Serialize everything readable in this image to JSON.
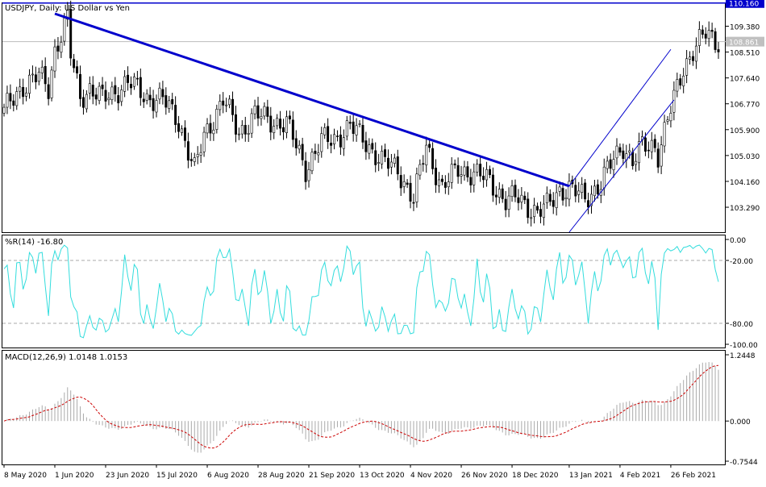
{
  "chart_data": [
    {
      "panel": "price",
      "type": "candlestick",
      "title": "USDJPY, Daily:  US Dollar vs Yen",
      "y_ticks": [
        "109.380",
        "108.510",
        "107.640",
        "106.770",
        "105.900",
        "105.030",
        "104.160",
        "103.290"
      ],
      "y_range": [
        102.45,
        110.18
      ],
      "current_price": "108.861",
      "level_line": {
        "label": "110.160",
        "color": "#0000cc"
      },
      "trendline": {
        "start": [
          "1 Jun 2020",
          109.8
        ],
        "end": [
          "13 Jan 2021",
          104.0
        ],
        "color": "#0000cc"
      },
      "channel": {
        "upper": {
          "start": [
            "13 Jan 2021",
            104.0
          ],
          "end": [
            "26 Feb 2021",
            108.6
          ]
        },
        "lower": {
          "start": [
            "13 Jan 2021",
            102.45
          ],
          "end": [
            "1 Mar 2021",
            106.9
          ]
        },
        "color": "#0000cc"
      },
      "anchors": [
        {
          "date": "8 May 2020",
          "v": 106.5
        },
        {
          "date": "18 May 2020",
          "v": 107.4
        },
        {
          "date": "25 May 2020",
          "v": 107.7
        },
        {
          "date": "28 May 2020",
          "v": 107.3
        },
        {
          "date": "1 Jun 2020",
          "v": 108.6
        },
        {
          "date": "5 Jun 2020",
          "v": 109.6
        },
        {
          "date": "8 Jun 2020",
          "v": 108.4
        },
        {
          "date": "11 Jun 2020",
          "v": 107.0
        },
        {
          "date": "16 Jun 2020",
          "v": 107.3
        },
        {
          "date": "22 Jun 2020",
          "v": 106.9
        },
        {
          "date": "26 Jun 2020",
          "v": 107.2
        },
        {
          "date": "2 Jul 2020",
          "v": 107.5
        },
        {
          "date": "10 Jul 2020",
          "v": 107.0
        },
        {
          "date": "17 Jul 2020",
          "v": 106.9
        },
        {
          "date": "24 Jul 2020",
          "v": 106.2
        },
        {
          "date": "31 Jul 2020",
          "v": 104.5
        },
        {
          "date": "5 Aug 2020",
          "v": 105.7
        },
        {
          "date": "13 Aug 2020",
          "v": 106.9
        },
        {
          "date": "20 Aug 2020",
          "v": 105.8
        },
        {
          "date": "27 Aug 2020",
          "v": 106.4
        },
        {
          "date": "3 Sep 2020",
          "v": 106.2
        },
        {
          "date": "10 Sep 2020",
          "v": 106.1
        },
        {
          "date": "18 Sep 2020",
          "v": 104.6
        },
        {
          "date": "25 Sep 2020",
          "v": 105.5
        },
        {
          "date": "1 Oct 2020",
          "v": 105.6
        },
        {
          "date": "8 Oct 2020",
          "v": 106.0
        },
        {
          "date": "15 Oct 2020",
          "v": 105.5
        },
        {
          "date": "22 Oct 2020",
          "v": 104.8
        },
        {
          "date": "29 Oct 2020",
          "v": 104.6
        },
        {
          "date": "5 Nov 2020",
          "v": 103.5
        },
        {
          "date": "11 Nov 2020",
          "v": 105.4
        },
        {
          "date": "18 Nov 2020",
          "v": 103.9
        },
        {
          "date": "25 Nov 2020",
          "v": 104.6
        },
        {
          "date": "2 Dec 2020",
          "v": 104.4
        },
        {
          "date": "9 Dec 2020",
          "v": 104.2
        },
        {
          "date": "16 Dec 2020",
          "v": 103.5
        },
        {
          "date": "22 Dec 2020",
          "v": 103.6
        },
        {
          "date": "30 Dec 2020",
          "v": 103.1
        },
        {
          "date": "4 Jan 2021",
          "v": 103.3
        },
        {
          "date": "8 Jan 2021",
          "v": 103.9
        },
        {
          "date": "13 Jan 2021",
          "v": 103.9
        },
        {
          "date": "20 Jan 2021",
          "v": 103.6
        },
        {
          "date": "27 Jan 2021",
          "v": 104.1
        },
        {
          "date": "2 Feb 2021",
          "v": 104.9
        },
        {
          "date": "5 Feb 2021",
          "v": 105.4
        },
        {
          "date": "10 Feb 2021",
          "v": 104.8
        },
        {
          "date": "15 Feb 2021",
          "v": 105.3
        },
        {
          "date": "19 Feb 2021",
          "v": 105.4
        },
        {
          "date": "22 Feb 2021",
          "v": 105.1
        },
        {
          "date": "25 Feb 2021",
          "v": 106.2
        },
        {
          "date": "1 Mar 2021",
          "v": 106.9
        },
        {
          "date": "4 Mar 2021",
          "v": 108.0
        },
        {
          "date": "9 Mar 2021",
          "v": 108.6
        },
        {
          "date": "15 Mar 2021",
          "v": 109.1
        },
        {
          "date": "18 Mar 2021",
          "v": 108.9
        }
      ]
    },
    {
      "panel": "williams_r",
      "type": "line",
      "title": "%R(14) -16.80",
      "y_ticks": [
        "0.00",
        "-20.00",
        "-80.00",
        "-100.00"
      ],
      "y_range": [
        -100,
        0
      ],
      "levels": [
        -20,
        -80
      ],
      "series": [
        {
          "color": "#33dddd"
        }
      ]
    },
    {
      "panel": "macd",
      "type": "histogram+line",
      "title": "MACD(12,26,9) 1.0148 1.0153",
      "y_ticks": [
        "1.2448",
        "0.000",
        "-0.7544"
      ],
      "y_range": [
        -0.7544,
        1.2448
      ],
      "series": [
        {
          "name": "MACD",
          "style": "histogram",
          "color": "#aaaaaa"
        },
        {
          "name": "Signal",
          "style": "dashed",
          "color": "#cc0000"
        }
      ]
    }
  ],
  "x_axis": {
    "labels": [
      "8 May 2020",
      "1 Jun 2020",
      "23 Jun 2020",
      "15 Jul 2020",
      "6 Aug 2020",
      "28 Aug 2020",
      "21 Sep 2020",
      "13 Oct 2020",
      "4 Nov 2020",
      "26 Nov 2020",
      "18 Dec 2020",
      "13 Jan 2021",
      "4 Feb 2021",
      "26 Feb 2021"
    ]
  },
  "colors": {
    "bull": "#ffffff",
    "bear": "#000000",
    "line": "#0000cc",
    "wr": "#33dddd",
    "macd_hist": "#aaaaaa",
    "signal": "#cc0000"
  }
}
